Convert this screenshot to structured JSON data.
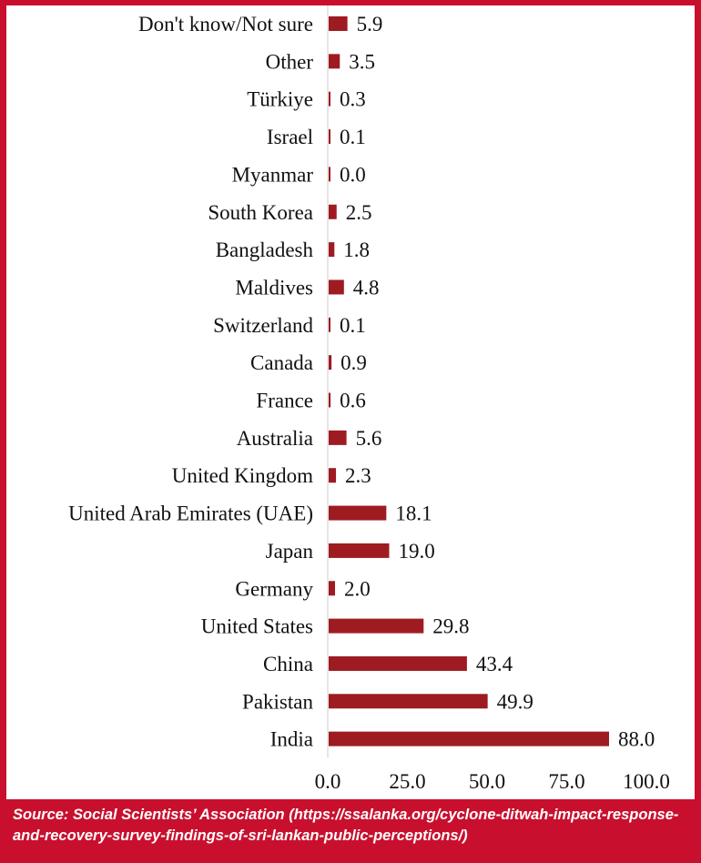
{
  "chart_data": {
    "type": "bar",
    "orientation": "horizontal",
    "categories": [
      "Don't know/Not sure",
      "Other",
      "Türkiye",
      "Israel",
      "Myanmar",
      "South Korea",
      "Bangladesh",
      "Maldives",
      "Switzerland",
      "Canada",
      "France",
      "Australia",
      "United Kingdom",
      "United Arab Emirates (UAE)",
      "Japan",
      "Germany",
      "United States",
      "China",
      "Pakistan",
      "India"
    ],
    "values": [
      5.9,
      3.5,
      0.3,
      0.1,
      0.0,
      2.5,
      1.8,
      4.8,
      0.1,
      0.9,
      0.6,
      5.6,
      2.3,
      18.1,
      19.0,
      2.0,
      29.8,
      43.4,
      49.9,
      88.0
    ],
    "value_labels": [
      "5.9",
      "3.5",
      "0.3",
      "0.1",
      "0.0",
      "2.5",
      "1.8",
      "4.8",
      "0.1",
      "0.9",
      "0.6",
      "5.6",
      "2.3",
      "18.1",
      "19.0",
      "2.0",
      "29.8",
      "43.4",
      "49.9",
      "88.0"
    ],
    "xlim": [
      0,
      100
    ],
    "xticks": [
      "0.0",
      "25.0",
      "50.0",
      "75.0",
      "100.0"
    ],
    "grid": false,
    "bar_color": "#9e1b22"
  },
  "source": "Source: Social Scientists’ Association (https://ssalanka.org/cyclone-ditwah-impact-response-and-recovery-survey-findings-of-sri-lankan-public-perceptions/)",
  "colors": {
    "frame": "#c8102e",
    "bar": "#9e1b22",
    "axis": "#cccccc"
  }
}
